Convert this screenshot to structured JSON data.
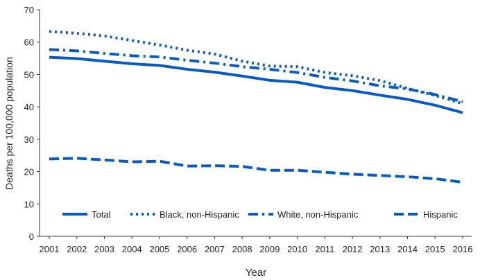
{
  "chart_data": {
    "type": "line",
    "title": "",
    "xlabel": "Year",
    "ylabel": "Deaths per 100,000 population",
    "ylim": [
      0,
      70
    ],
    "yticks": [
      0,
      10,
      20,
      30,
      40,
      50,
      60,
      70
    ],
    "grid": false,
    "legend": "bottom-inside",
    "line_color": "#0a5bbf",
    "x": [
      "2001",
      "2002",
      "2003",
      "2004",
      "2005",
      "2006",
      "2007",
      "2008",
      "2009",
      "2010",
      "2011",
      "2012",
      "2013",
      "2014",
      "2015",
      "2016"
    ],
    "series": [
      {
        "name": "Total",
        "style": "solid",
        "values": [
          55.3,
          54.9,
          54.1,
          53.3,
          52.8,
          51.6,
          50.7,
          49.5,
          48.2,
          47.6,
          46.0,
          45.0,
          43.6,
          42.3,
          40.5,
          38.2
        ]
      },
      {
        "name": "Black, non-Hispanic",
        "style": "dotted",
        "values": [
          63.3,
          62.7,
          61.9,
          60.5,
          59.1,
          57.5,
          56.3,
          54.1,
          52.6,
          52.4,
          50.6,
          49.6,
          48.1,
          45.7,
          43.5,
          41.0
        ]
      },
      {
        "name": "White, non-Hispanic",
        "style": "dash-dot",
        "values": [
          57.7,
          57.3,
          56.5,
          55.8,
          55.4,
          54.4,
          53.5,
          52.4,
          51.6,
          50.6,
          49.1,
          48.0,
          46.5,
          45.5,
          43.8,
          41.6
        ]
      },
      {
        "name": "Hispanic",
        "style": "dashed",
        "values": [
          23.9,
          24.1,
          23.6,
          23.0,
          23.2,
          21.7,
          21.8,
          21.6,
          20.4,
          20.4,
          19.8,
          19.2,
          18.8,
          18.4,
          17.8,
          16.7
        ]
      }
    ]
  }
}
